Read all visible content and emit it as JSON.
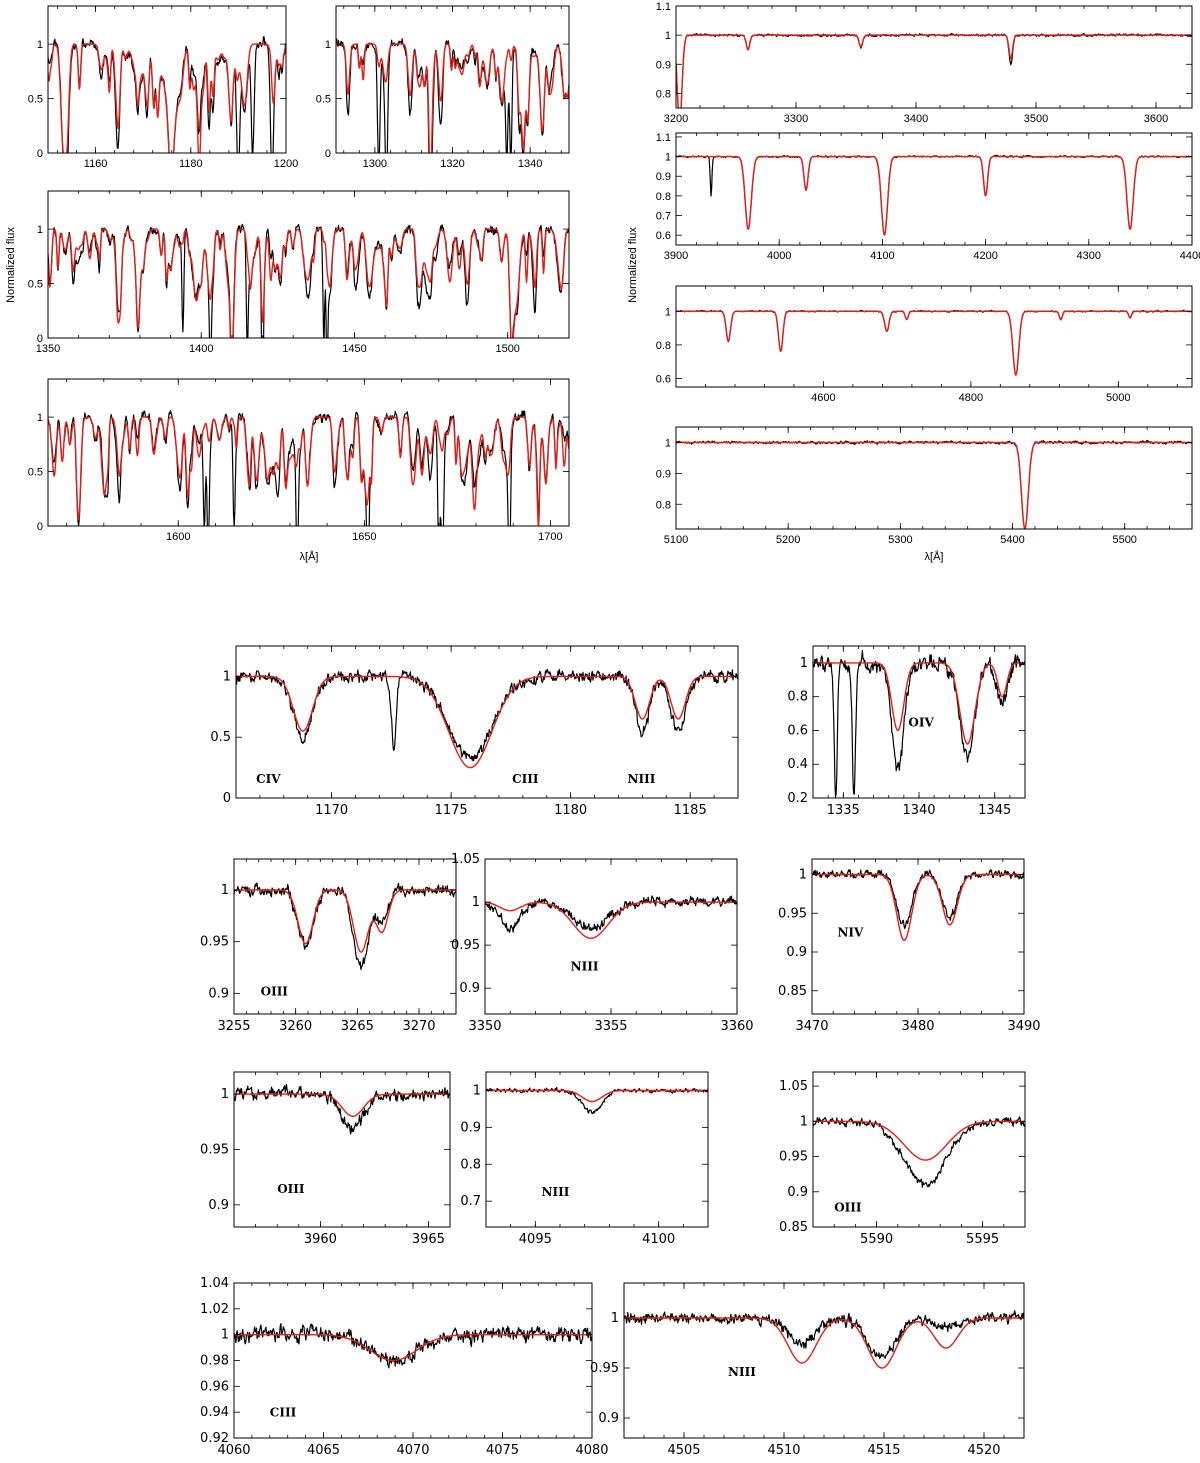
{
  "colors": {
    "observed": "#000000",
    "model": "#e0201b"
  },
  "chart_data": [
    {
      "id": "p1",
      "type": "line",
      "xlim": [
        1150,
        1200
      ],
      "ylim": [
        0,
        1.35
      ],
      "xticks": [
        1160,
        1180,
        1200
      ],
      "yticks": [
        0,
        0.5,
        1
      ],
      "ytick_labels": [
        "0",
        "0.5",
        "1"
      ],
      "lines": [
        {
          "c": 1169,
          "w": 1.0,
          "dm": 0.35,
          "do": 0.4
        },
        {
          "c": 1176,
          "w": 1.3,
          "dm": 0.78,
          "do": 0.72
        },
        {
          "c": 1184,
          "w": 0.6,
          "dm": 0.25,
          "do": 0.35
        },
        {
          "c": 1190,
          "w": 0.3,
          "dm": 0.0,
          "do": 0.9
        },
        {
          "c": 1193,
          "w": 0.3,
          "dm": 0.0,
          "do": 1.0
        },
        {
          "c": 1197,
          "w": 0.3,
          "dm": 0.0,
          "do": 0.9
        }
      ]
    },
    {
      "id": "p2",
      "type": "line",
      "xlim": [
        1290,
        1350
      ],
      "ylim": [
        0,
        1.35
      ],
      "xticks": [
        1300,
        1320,
        1340
      ],
      "yticks": [
        0,
        0.5,
        1
      ],
      "ytick_labels": [
        "0",
        "0.5",
        "1"
      ],
      "lines": [
        {
          "c": 1301,
          "w": 0.3,
          "dm": 0.05,
          "do": 1.0
        },
        {
          "c": 1303,
          "w": 0.3,
          "dm": 0.05,
          "do": 1.0
        },
        {
          "c": 1334,
          "w": 0.3,
          "dm": 0.05,
          "do": 1.0
        },
        {
          "c": 1335,
          "w": 0.3,
          "dm": 0.05,
          "do": 1.0
        },
        {
          "c": 1338,
          "w": 0.5,
          "dm": 0.4,
          "do": 0.5
        },
        {
          "c": 1343,
          "w": 0.6,
          "dm": 0.5,
          "do": 0.45
        }
      ]
    },
    {
      "id": "p3",
      "type": "line",
      "xlim": [
        1350,
        1520
      ],
      "ylim": [
        0,
        1.35
      ],
      "xticks": [
        1350,
        1400,
        1450,
        1500
      ],
      "yticks": [
        0,
        0.5,
        1
      ],
      "ytick_labels": [
        "0",
        "0.5",
        "1"
      ],
      "ylabel": "Normalized flux",
      "lines": [
        {
          "c": 1394,
          "w": 0.3,
          "dm": 0.1,
          "do": 0.95
        },
        {
          "c": 1403,
          "w": 0.3,
          "dm": 0.1,
          "do": 0.8
        },
        {
          "c": 1415,
          "w": 0.3,
          "dm": 0.1,
          "do": 1.0
        },
        {
          "c": 1420,
          "w": 0.3,
          "dm": 0.1,
          "do": 1.0
        },
        {
          "c": 1440,
          "w": 0.3,
          "dm": 0.1,
          "do": 1.0
        },
        {
          "c": 1441,
          "w": 0.3,
          "dm": 0.1,
          "do": 1.0
        },
        {
          "c": 1501,
          "w": 0.5,
          "dm": 0.4,
          "do": 0.45
        }
      ]
    },
    {
      "id": "p4",
      "type": "line",
      "xlim": [
        1565,
        1705
      ],
      "ylim": [
        0,
        1.35
      ],
      "xticks": [
        1600,
        1650,
        1700
      ],
      "yticks": [
        0,
        0.5,
        1
      ],
      "ytick_labels": [
        "0",
        "0.5",
        "1"
      ],
      "xlabel": "λ[Å]",
      "lines": [
        {
          "c": 1607,
          "w": 0.3,
          "dm": 0.05,
          "do": 1.0
        },
        {
          "c": 1608,
          "w": 0.3,
          "dm": 0.05,
          "do": 1.0
        },
        {
          "c": 1615,
          "w": 0.3,
          "dm": 0.05,
          "do": 1.0
        },
        {
          "c": 1632,
          "w": 0.3,
          "dm": 0.05,
          "do": 1.0
        },
        {
          "c": 1651,
          "w": 0.3,
          "dm": 0.05,
          "do": 1.0
        },
        {
          "c": 1670,
          "w": 0.3,
          "dm": 0.05,
          "do": 1.0
        },
        {
          "c": 1671,
          "w": 0.3,
          "dm": 0.05,
          "do": 1.0
        },
        {
          "c": 1689,
          "w": 0.3,
          "dm": 0.05,
          "do": 1.0
        }
      ]
    },
    {
      "id": "p5",
      "type": "line",
      "xlim": [
        3200,
        3630
      ],
      "ylim": [
        0.75,
        1.1
      ],
      "xticks": [
        3200,
        3300,
        3400,
        3500,
        3600
      ],
      "yticks": [
        0.8,
        0.9,
        1,
        1.1
      ],
      "ytick_labels": [
        "0.8",
        "0.9",
        "1",
        "1.1"
      ],
      "lines": [
        {
          "c": 3203,
          "w": 2,
          "dm": 0.3,
          "do": 0.3
        },
        {
          "c": 3260,
          "w": 1.5,
          "dm": 0.05,
          "do": 0.05
        },
        {
          "c": 3354,
          "w": 1.5,
          "dm": 0.04,
          "do": 0.04
        },
        {
          "c": 3479,
          "w": 1.5,
          "dm": 0.08,
          "do": 0.1
        }
      ]
    },
    {
      "id": "p6",
      "type": "line",
      "xlim": [
        3900,
        4400
      ],
      "ylim": [
        0.55,
        1.12
      ],
      "xticks": [
        3900,
        4000,
        4100,
        4200,
        4300,
        4400
      ],
      "yticks": [
        0.6,
        0.7,
        0.8,
        0.9,
        1,
        1.1
      ],
      "ytick_labels": [
        "0.6",
        "0.7",
        "0.8",
        "0.9",
        "1",
        "1.1"
      ],
      "ylabel": "Normalized flux",
      "lines": [
        {
          "c": 3934,
          "w": 0.8,
          "dm": 0.0,
          "do": 0.2
        },
        {
          "c": 3970,
          "w": 3,
          "dm": 0.37,
          "do": 0.37
        },
        {
          "c": 4026,
          "w": 2,
          "dm": 0.17,
          "do": 0.17
        },
        {
          "c": 4102,
          "w": 3,
          "dm": 0.4,
          "do": 0.4
        },
        {
          "c": 4200,
          "w": 2,
          "dm": 0.2,
          "do": 0.2
        },
        {
          "c": 4340,
          "w": 3,
          "dm": 0.37,
          "do": 0.37
        }
      ]
    },
    {
      "id": "p7",
      "type": "line",
      "xlim": [
        4400,
        5100
      ],
      "ylim": [
        0.55,
        1.15
      ],
      "xticks": [
        4600,
        4800,
        5000
      ],
      "yticks": [
        0.6,
        0.8,
        1
      ],
      "ytick_labels": [
        "0.6",
        "0.8",
        "1"
      ],
      "lines": [
        {
          "c": 4471,
          "w": 3,
          "dm": 0.18,
          "do": 0.18
        },
        {
          "c": 4542,
          "w": 3,
          "dm": 0.24,
          "do": 0.24
        },
        {
          "c": 4686,
          "w": 3,
          "dm": 0.12,
          "do": 0.12
        },
        {
          "c": 4713,
          "w": 2,
          "dm": 0.05,
          "do": 0.05
        },
        {
          "c": 4861,
          "w": 4,
          "dm": 0.38,
          "do": 0.38
        },
        {
          "c": 4922,
          "w": 2,
          "dm": 0.05,
          "do": 0.05
        },
        {
          "c": 5016,
          "w": 2,
          "dm": 0.04,
          "do": 0.04
        }
      ]
    },
    {
      "id": "p8",
      "type": "line",
      "xlim": [
        5100,
        5560
      ],
      "ylim": [
        0.72,
        1.05
      ],
      "xticks": [
        5100,
        5200,
        5300,
        5400,
        5500
      ],
      "yticks": [
        0.8,
        0.9,
        1
      ],
      "ytick_labels": [
        "0.8",
        "0.9",
        "1"
      ],
      "xlabel": "λ[Å]",
      "lines": [
        {
          "c": 5411,
          "w": 3,
          "dm": 0.28,
          "do": 0.28
        }
      ]
    },
    {
      "id": "z1",
      "type": "line",
      "xlim": [
        1166,
        1187
      ],
      "ylim": [
        0,
        1.25
      ],
      "xticks": [
        1170,
        1175,
        1180,
        1185
      ],
      "yticks": [
        0,
        0.5,
        1
      ],
      "ytick_labels": [
        "0",
        "0.5",
        "1"
      ],
      "ions": [
        "CIV",
        "CIII",
        "NIII"
      ],
      "lines": [
        {
          "c": 1168.8,
          "w": 0.4,
          "dm": 0.45,
          "do": 0.5
        },
        {
          "c": 1172.6,
          "w": 0.1,
          "dm": 0.0,
          "do": 0.6
        },
        {
          "c": 1175.8,
          "w": 0.9,
          "dm": 0.75,
          "do": 0.68
        },
        {
          "c": 1183,
          "w": 0.3,
          "dm": 0.35,
          "do": 0.45
        },
        {
          "c": 1184.5,
          "w": 0.3,
          "dm": 0.35,
          "do": 0.45
        }
      ]
    },
    {
      "id": "z2",
      "type": "line",
      "xlim": [
        1333,
        1347
      ],
      "ylim": [
        0.2,
        1.1
      ],
      "xticks": [
        1335,
        1340,
        1345
      ],
      "yticks": [
        0.2,
        0.4,
        0.6,
        0.8,
        1
      ],
      "ytick_labels": [
        "0.2",
        "0.4",
        "0.6",
        "0.8",
        "1"
      ],
      "ions": [
        "OIV"
      ],
      "lines": [
        {
          "c": 1334.5,
          "w": 0.1,
          "dm": 0.0,
          "do": 0.8
        },
        {
          "c": 1335.7,
          "w": 0.1,
          "dm": 0.0,
          "do": 0.8
        },
        {
          "c": 1338.6,
          "w": 0.4,
          "dm": 0.4,
          "do": 0.62
        },
        {
          "c": 1343.2,
          "w": 0.5,
          "dm": 0.48,
          "do": 0.55
        },
        {
          "c": 1345.5,
          "w": 0.3,
          "dm": 0.2,
          "do": 0.25
        }
      ]
    },
    {
      "id": "z3",
      "type": "line",
      "xlim": [
        3255,
        3273
      ],
      "ylim": [
        0.88,
        1.03
      ],
      "xticks": [
        3255,
        3260,
        3265,
        3270
      ],
      "yticks": [
        0.9,
        0.95,
        1
      ],
      "ytick_labels": [
        "0.9",
        "0.95",
        "1"
      ],
      "ions": [
        "OIII"
      ],
      "lines": [
        {
          "c": 3260.8,
          "w": 0.6,
          "dm": 0.052,
          "do": 0.055
        },
        {
          "c": 3265.3,
          "w": 0.6,
          "dm": 0.06,
          "do": 0.075
        },
        {
          "c": 3267,
          "w": 0.5,
          "dm": 0.04,
          "do": 0.03
        }
      ]
    },
    {
      "id": "z4",
      "type": "line",
      "xlim": [
        3350,
        3360
      ],
      "ylim": [
        0.87,
        1.05
      ],
      "xticks": [
        3350,
        3355,
        3360
      ],
      "yticks": [
        0.9,
        0.95,
        1,
        1.05
      ],
      "ytick_labels": [
        "0.9",
        "0.95",
        "1",
        "1.05"
      ],
      "ions": [
        "NIII"
      ],
      "lines": [
        {
          "c": 3354.2,
          "w": 0.7,
          "dm": 0.042,
          "do": 0.03
        },
        {
          "c": 3351,
          "w": 0.4,
          "dm": 0.01,
          "do": 0.03
        }
      ]
    },
    {
      "id": "z5",
      "type": "line",
      "xlim": [
        3470,
        3490
      ],
      "ylim": [
        0.82,
        1.02
      ],
      "xticks": [
        3470,
        3480,
        3490
      ],
      "yticks": [
        0.85,
        0.9,
        0.95,
        1
      ],
      "ytick_labels": [
        "0.85",
        "0.9",
        "0.95",
        "1"
      ],
      "ions": [
        "NIV"
      ],
      "lines": [
        {
          "c": 3478.7,
          "w": 0.7,
          "dm": 0.085,
          "do": 0.065
        },
        {
          "c": 3483,
          "w": 0.7,
          "dm": 0.065,
          "do": 0.055
        }
      ]
    },
    {
      "id": "z6",
      "type": "line",
      "xlim": [
        3956,
        3966
      ],
      "ylim": [
        0.88,
        1.02
      ],
      "xticks": [
        3960,
        3965
      ],
      "yticks": [
        0.9,
        0.95,
        1
      ],
      "ytick_labels": [
        "0.9",
        "0.95",
        "1"
      ],
      "ions": [
        "OIII"
      ],
      "lines": [
        {
          "c": 3961.5,
          "w": 0.5,
          "dm": 0.02,
          "do": 0.03
        }
      ]
    },
    {
      "id": "z7",
      "type": "line",
      "xlim": [
        4093,
        4102
      ],
      "ylim": [
        0.63,
        1.05
      ],
      "xticks": [
        4095,
        4100
      ],
      "yticks": [
        0.7,
        0.8,
        0.9,
        1
      ],
      "ytick_labels": [
        "0.7",
        "0.8",
        "0.9",
        "1"
      ],
      "ions": [
        "NIII"
      ],
      "lines": [
        {
          "c": 4097.3,
          "w": 0.4,
          "dm": 0.03,
          "do": 0.06
        }
      ]
    },
    {
      "id": "z8",
      "type": "line",
      "xlim": [
        5587,
        5597
      ],
      "ylim": [
        0.85,
        1.07
      ],
      "xticks": [
        5590,
        5595
      ],
      "yticks": [
        0.85,
        0.9,
        0.95,
        1,
        1.05
      ],
      "ytick_labels": [
        "0.85",
        "0.9",
        "0.95",
        "1",
        "1.05"
      ],
      "ions": [
        "OIII"
      ],
      "lines": [
        {
          "c": 5592.3,
          "w": 1.0,
          "dm": 0.055,
          "do": 0.09
        }
      ]
    },
    {
      "id": "z9",
      "type": "line",
      "xlim": [
        4060,
        4080
      ],
      "ylim": [
        0.92,
        1.04
      ],
      "xticks": [
        4060,
        4065,
        4070,
        4075,
        4080
      ],
      "yticks": [
        0.92,
        0.94,
        0.96,
        0.98,
        1,
        1.02,
        1.04
      ],
      "ytick_labels": [
        "0.92",
        "0.94",
        "0.96",
        "0.98",
        "1",
        "1.02",
        "1.04"
      ],
      "ions": [
        "CIII"
      ],
      "lines": [
        {
          "c": 4068.9,
          "w": 1.3,
          "dm": 0.02,
          "do": 0.02
        }
      ]
    },
    {
      "id": "z10",
      "type": "line",
      "xlim": [
        4502,
        4522
      ],
      "ylim": [
        0.88,
        1.035
      ],
      "xticks": [
        4505,
        4510,
        4515,
        4520
      ],
      "yticks": [
        0.9,
        0.95,
        1
      ],
      "ytick_labels": [
        "0.9",
        "0.95",
        "1"
      ],
      "ions": [
        "NIII"
      ],
      "lines": [
        {
          "c": 4510.9,
          "w": 0.7,
          "dm": 0.045,
          "do": 0.025
        },
        {
          "c": 4514.9,
          "w": 0.7,
          "dm": 0.05,
          "do": 0.04
        },
        {
          "c": 4518.1,
          "w": 0.6,
          "dm": 0.03,
          "do": 0.01
        }
      ]
    }
  ]
}
